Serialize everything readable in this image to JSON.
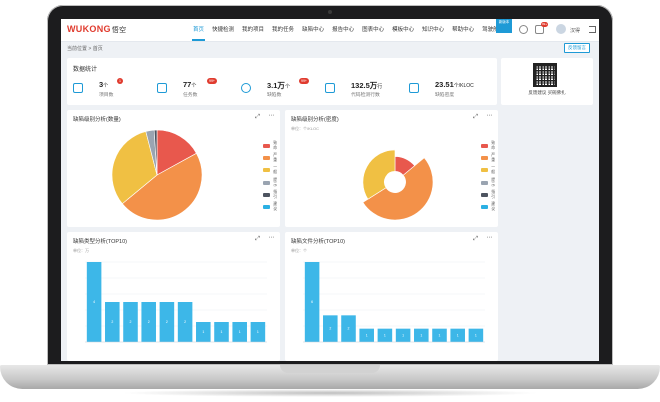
{
  "app": {
    "logo": "WUKONG",
    "logo_cn": "悟空"
  },
  "nav": [
    "首页",
    "快捷检测",
    "我的项目",
    "我的任务",
    "缺陷中心",
    "报告中心",
    "图表中心",
    "模板中心",
    "知识中心",
    "帮助中心",
    "驾驶舱"
  ],
  "header": {
    "flag": "新版本",
    "badge_1": "1",
    "badge_2": "99+",
    "user": "汉得"
  },
  "breadcrumb": "当前位置 > 首页",
  "feedback_label": "反馈留言",
  "overview": {
    "title": "数据统计",
    "stats": [
      {
        "icon": "layers-icon",
        "value": "3",
        "unit": "个",
        "label": "项目数",
        "badge": "1"
      },
      {
        "icon": "task-check-icon",
        "value": "77",
        "unit": "个",
        "label": "任务数",
        "badge": "99+"
      },
      {
        "icon": "bug-icon",
        "value": "3.1万",
        "unit": "个",
        "label": "缺陷数",
        "badge": "99+"
      },
      {
        "icon": "code-lines-icon",
        "value": "132.5万",
        "unit": "行",
        "label": "代码检测行数",
        "badge": ""
      },
      {
        "icon": "density-chart-icon",
        "value": "23.51",
        "unit": "个/KLOC",
        "label": "缺陷密度",
        "badge": ""
      }
    ]
  },
  "qr": {
    "label": "反馈建议 买碗佛扎"
  },
  "colors": {
    "accent": "#1e9ad6",
    "red": "#e8584d",
    "orange": "#f39149",
    "yellow": "#f0c043",
    "gray": "#9aa4b1",
    "dark": "#4d5460",
    "cyan": "#2bb0e3",
    "bar": "#3db7e8"
  },
  "panels": {
    "pie_count": {
      "title": "缺陷级别分析(数量)"
    },
    "pie_density": {
      "title": "缺陷级别分析(密度)",
      "unit": "单位：个/KLOC"
    },
    "bar_type": {
      "title": "缺陷类型分析(TOP10)",
      "unit": "单位：万"
    },
    "bar_file": {
      "title": "缺陷文件分析(TOP10)",
      "unit": "单位：个"
    }
  },
  "legend": [
    "致命",
    "严重",
    "一般",
    "提示",
    "指引",
    "建议"
  ],
  "chart_data": [
    {
      "type": "pie",
      "title": "缺陷级别分析(数量)",
      "categories": [
        "致命",
        "严重",
        "一般",
        "提示",
        "指引",
        "建议"
      ],
      "values": [
        17,
        47,
        32,
        3,
        1,
        0
      ]
    },
    {
      "type": "pie",
      "title": "缺陷级别分析(密度)",
      "categories": [
        "致命",
        "严重",
        "一般",
        "提示",
        "指引",
        "建议"
      ],
      "values": [
        14,
        52,
        34,
        0,
        0,
        0
      ]
    },
    {
      "type": "bar",
      "title": "缺陷类型分析(TOP10)",
      "ylabel": "单位：万",
      "categories": [
        "",
        "",
        "",
        "",
        "",
        "",
        "",
        "",
        "",
        ""
      ],
      "values": [
        4,
        2,
        2,
        2,
        2,
        2,
        1,
        1,
        1,
        1
      ],
      "data_labels": [
        "4",
        "2",
        "2",
        "2",
        "2",
        "2",
        "1",
        "1",
        "1",
        "1"
      ]
    },
    {
      "type": "bar",
      "title": "缺陷文件分析(TOP10)",
      "ylabel": "单位：个",
      "categories": [
        "",
        "",
        " ",
        " ",
        " ",
        " ",
        " ",
        " ",
        " ",
        " "
      ],
      "values": [
        6,
        2,
        2,
        1,
        1,
        1,
        1,
        1,
        1,
        1
      ],
      "data_labels": [
        "6",
        "2",
        "2",
        "1",
        "1",
        "1",
        "1",
        "1",
        "1",
        "1"
      ]
    }
  ]
}
